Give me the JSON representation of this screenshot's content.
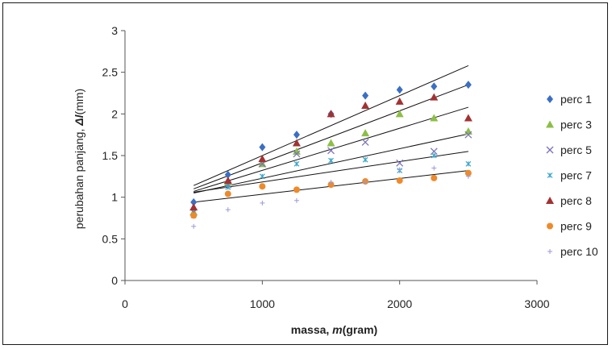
{
  "chart_data": {
    "type": "scatter",
    "xlabel": {
      "prefix": "massa, ",
      "var": "m",
      "suffix": "(gram)"
    },
    "ylabel": {
      "prefix": "perubahan panjang, ",
      "var": "Δl",
      "suffix": "(mm)"
    },
    "xlim": [
      0,
      3000
    ],
    "ylim": [
      0,
      3
    ],
    "x_ticks": [
      "0",
      "1000",
      "2000",
      "3000"
    ],
    "y_ticks": [
      "0",
      "0.5",
      "1",
      "1.5",
      "2",
      "2.5",
      "3"
    ],
    "grid": false,
    "legend_position": "right",
    "x": [
      500,
      750,
      1000,
      1250,
      1500,
      1750,
      2000,
      2250,
      2500
    ],
    "series": [
      {
        "name": "perc 1",
        "marker": "diamond",
        "color": "#3a6fc4",
        "values": [
          0.94,
          1.27,
          1.6,
          1.75,
          2.0,
          2.22,
          2.29,
          2.33,
          2.35
        ],
        "trend": [
          1.14,
          2.58
        ]
      },
      {
        "name": "perc 3",
        "marker": "triangle",
        "color": "#8cbf45",
        "values": [
          0.82,
          1.18,
          1.4,
          1.55,
          1.65,
          1.77,
          2.0,
          1.95,
          1.79
        ],
        "trend": [
          1.1,
          2.35
        ]
      },
      {
        "name": "perc 5",
        "marker": "x",
        "color": "#7b72b8",
        "values": [
          0.82,
          1.15,
          1.4,
          1.52,
          1.56,
          1.66,
          1.41,
          1.55,
          1.75
        ],
        "trend": [
          1.07,
          2.08
        ]
      },
      {
        "name": "perc 7",
        "marker": "star",
        "color": "#3aa6c9",
        "values": [
          0.78,
          1.12,
          1.25,
          1.4,
          1.44,
          1.45,
          1.32,
          1.5,
          1.4
        ],
        "trend": [
          1.05,
          1.76
        ]
      },
      {
        "name": "perc 8",
        "marker": "triangle",
        "color": "#a33232",
        "values": [
          0.88,
          1.2,
          1.46,
          1.65,
          2.0,
          2.1,
          2.15,
          2.2,
          1.95
        ],
        "trend": [
          1.06,
          1.55
        ]
      },
      {
        "name": "perc 9",
        "marker": "circle",
        "color": "#ee8a2a",
        "values": [
          0.78,
          1.04,
          1.13,
          1.09,
          1.15,
          1.19,
          1.2,
          1.23,
          1.29
        ],
        "trend": [
          0.94,
          1.32
        ]
      },
      {
        "name": "perc 10",
        "marker": "plus",
        "color": "#9a9ad6",
        "values": [
          0.65,
          0.85,
          0.93,
          0.96,
          1.18,
          1.18,
          1.33,
          1.35,
          1.25
        ],
        "trend": null
      }
    ]
  }
}
